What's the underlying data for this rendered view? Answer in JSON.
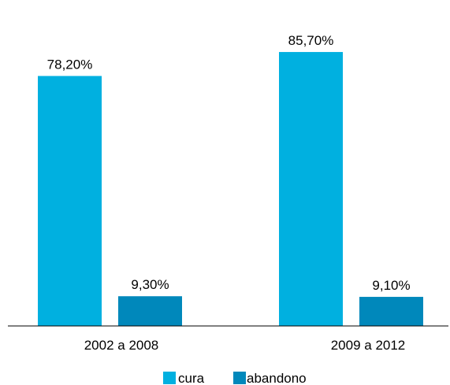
{
  "chart_data": {
    "type": "bar",
    "categories": [
      "2002 a 2008",
      "2009 a 2012"
    ],
    "series": [
      {
        "name": "cura",
        "color": "#00B0E0",
        "values": [
          78.2,
          85.7
        ],
        "labels": [
          "78,20%",
          "85,70%"
        ]
      },
      {
        "name": "abandono",
        "color": "#0088BB",
        "values": [
          9.3,
          9.1
        ],
        "labels": [
          "9,30%",
          "9,10%"
        ]
      }
    ],
    "ylim": [
      0,
      100
    ],
    "grid": false,
    "legend_position": "bottom-center"
  }
}
